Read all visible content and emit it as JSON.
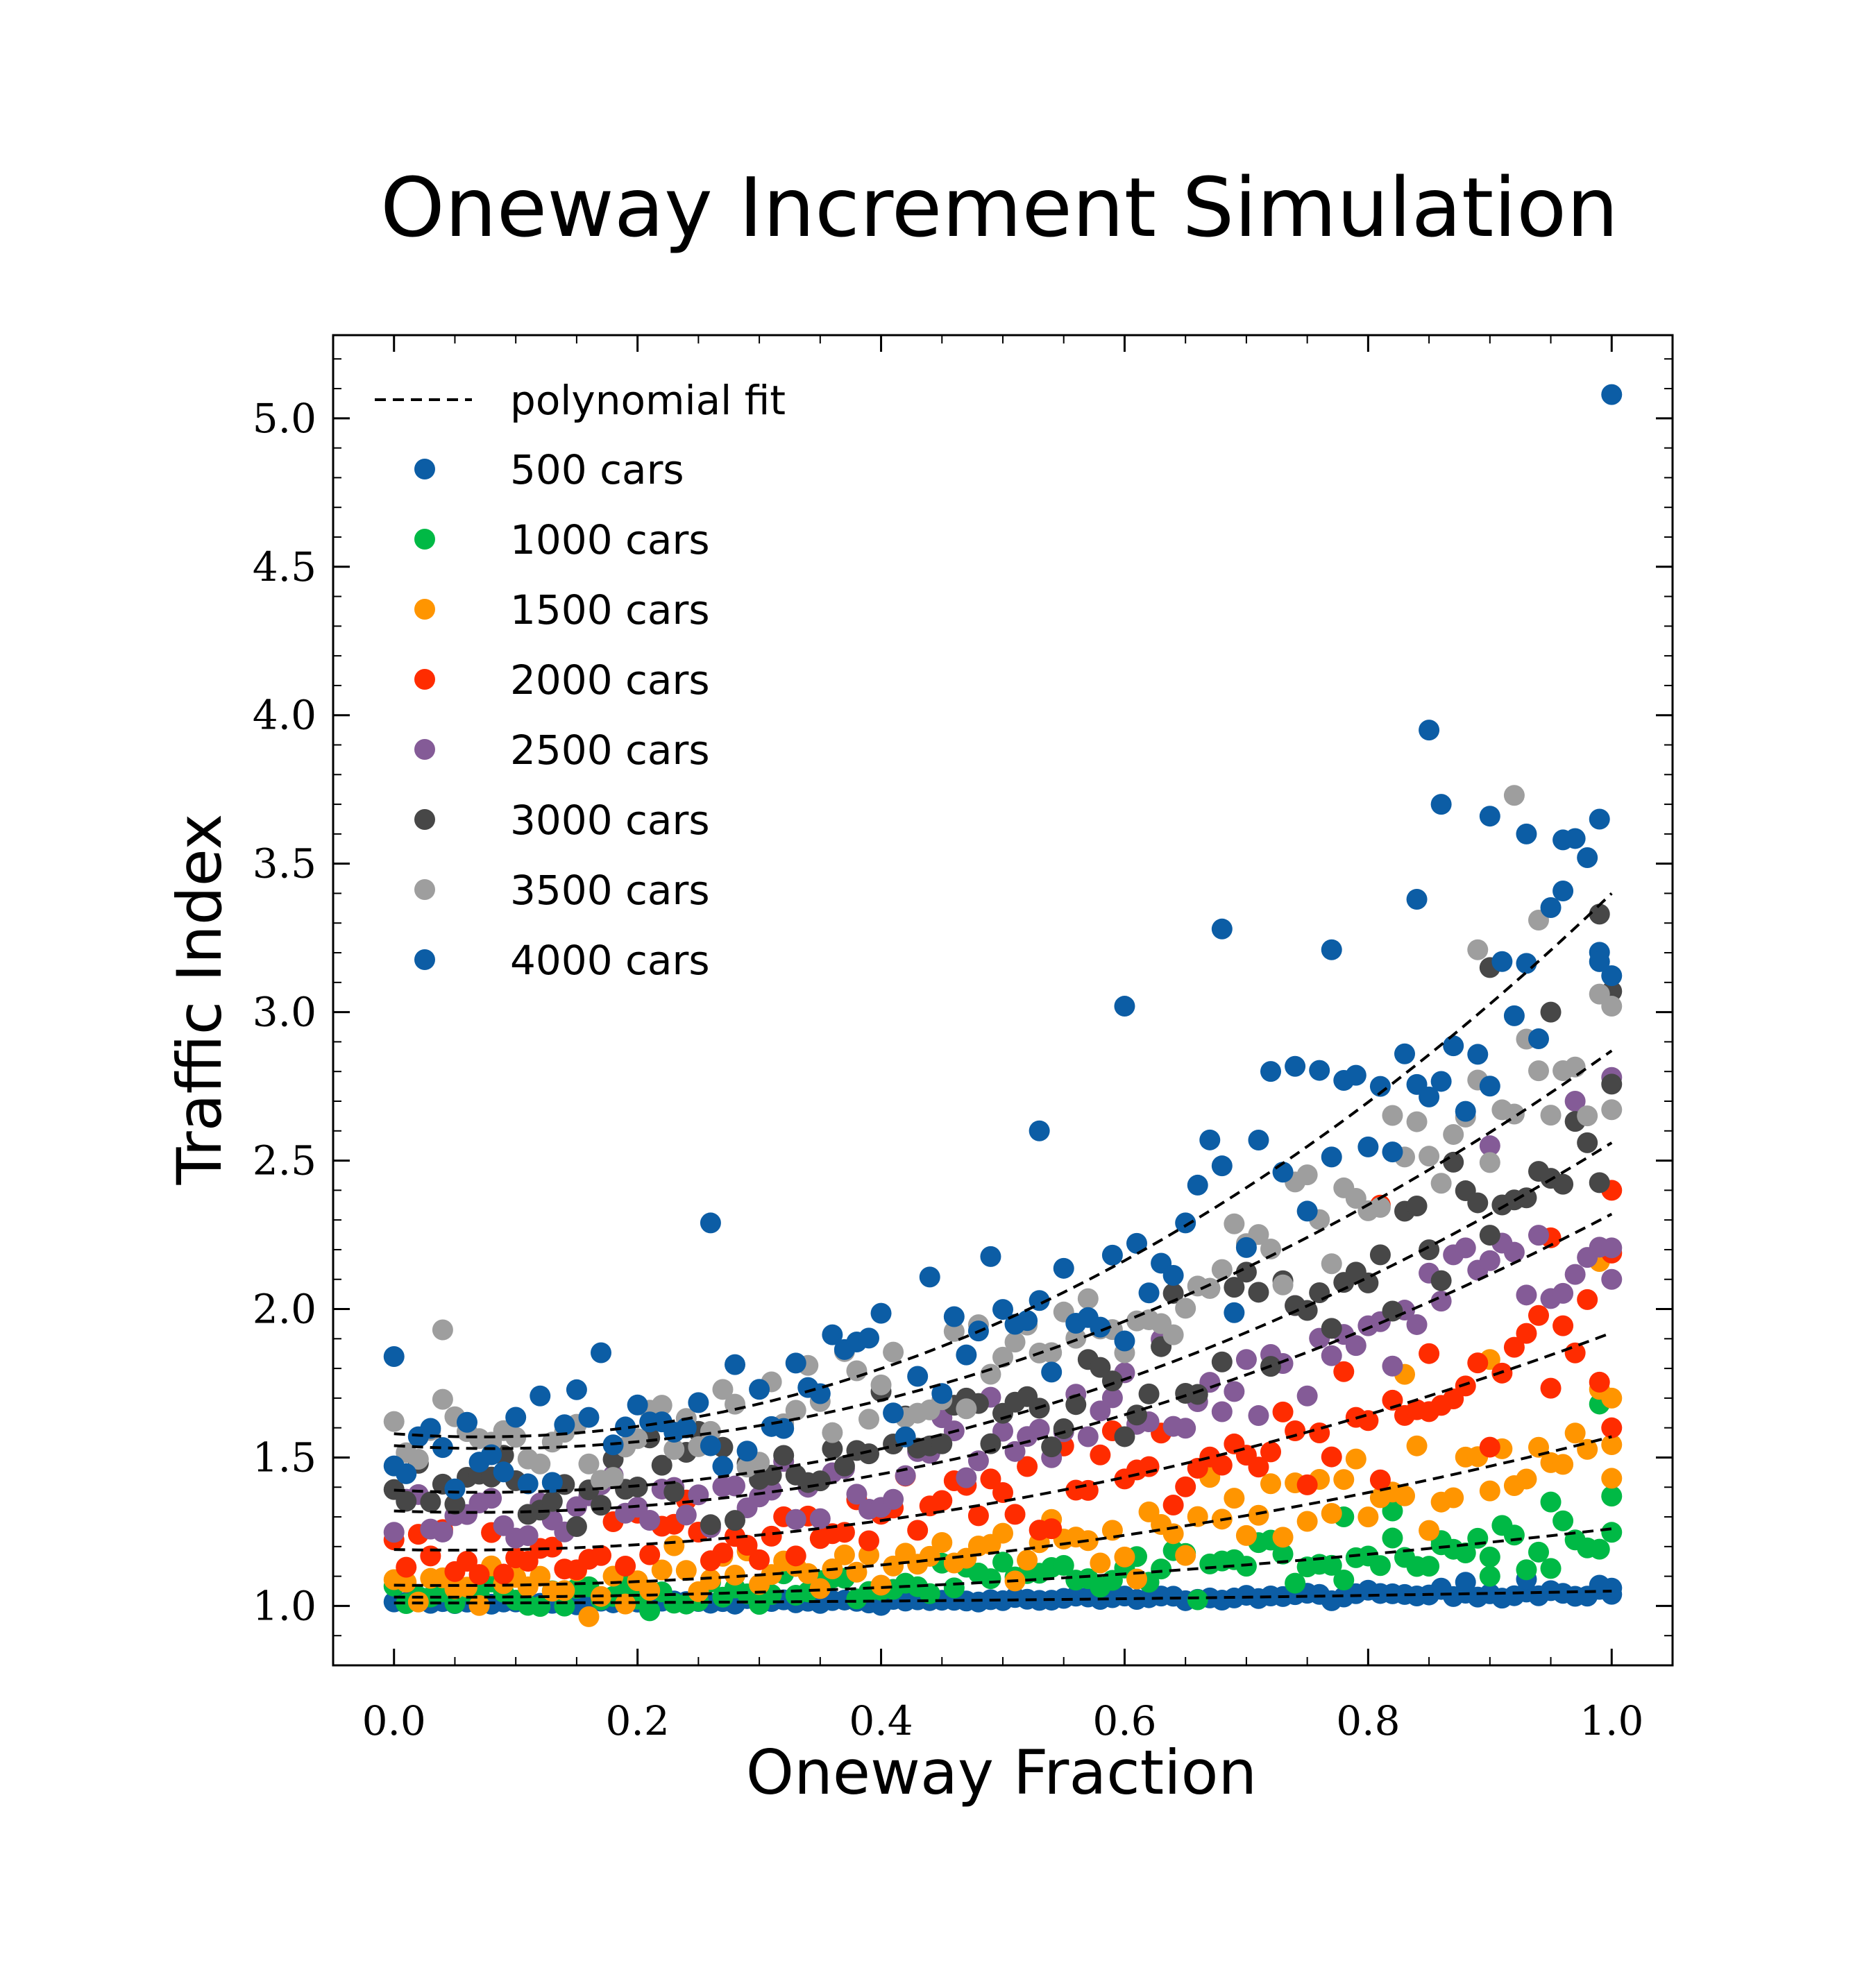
{
  "chart_data": {
    "type": "scatter",
    "title": "Oneway Increment Simulation",
    "xlabel": "Oneway Fraction",
    "ylabel": "Traffic Index",
    "xlim": [
      -0.05,
      1.05
    ],
    "ylim": [
      0.8,
      5.28
    ],
    "xticks": [
      0.0,
      0.2,
      0.4,
      0.6,
      0.8,
      1.0
    ],
    "xtick_labels": [
      "0.0",
      "0.2",
      "0.4",
      "0.6",
      "0.8",
      "1.0"
    ],
    "yticks": [
      1.0,
      1.5,
      2.0,
      2.5,
      3.0,
      3.5,
      4.0,
      4.5,
      5.0
    ],
    "ytick_labels": [
      "1.0",
      "1.5",
      "2.0",
      "2.5",
      "3.0",
      "3.5",
      "4.0",
      "4.5",
      "5.0"
    ],
    "grid": false,
    "legend_position": "top-left",
    "fit_label": "polynomial fit",
    "series": [
      {
        "name": "500 cars",
        "color": "#0C5DA5",
        "fit": [
          1.01,
          0.0,
          0.04
        ],
        "noise": 0.005,
        "outliers": [
          [
            0.86,
            1.06
          ],
          [
            0.88,
            1.08
          ],
          [
            0.93,
            1.09
          ],
          [
            0.99,
            1.07
          ],
          [
            1.0,
            1.06
          ]
        ]
      },
      {
        "name": "1000 cars",
        "color": "#00B945",
        "fit": [
          1.03,
          -0.02,
          0.25
        ],
        "noise": 0.03,
        "outliers": [
          [
            0.78,
            1.3
          ],
          [
            0.82,
            1.32
          ],
          [
            0.86,
            1.22
          ],
          [
            0.9,
            1.1
          ],
          [
            0.95,
            1.35
          ],
          [
            0.99,
            1.68
          ],
          [
            1.0,
            1.37
          ]
        ]
      },
      {
        "name": "1500 cars",
        "color": "#FF9500",
        "fit": [
          1.07,
          -0.05,
          0.55
        ],
        "noise": 0.05,
        "outliers": [
          [
            0.83,
            1.78
          ],
          [
            0.9,
            1.83
          ],
          [
            0.99,
            2.16
          ],
          [
            1.0,
            1.7
          ],
          [
            1.0,
            1.43
          ]
        ]
      },
      {
        "name": "2000 cars",
        "color": "#FF2C00",
        "fit": [
          1.19,
          -0.08,
          0.81
        ],
        "noise": 0.06,
        "outliers": [
          [
            0.81,
            2.35
          ],
          [
            0.85,
            1.85
          ],
          [
            0.95,
            2.24
          ],
          [
            1.0,
            2.4
          ],
          [
            1.0,
            1.6
          ]
        ]
      },
      {
        "name": "2500 cars",
        "color": "#845B97",
        "fit": [
          1.32,
          -0.15,
          1.15
        ],
        "noise": 0.07,
        "outliers": [
          [
            0.9,
            2.55
          ],
          [
            0.97,
            2.7
          ],
          [
            1.0,
            2.78
          ],
          [
            1.0,
            2.1
          ]
        ]
      },
      {
        "name": "3000 cars",
        "color": "#474747",
        "fit": [
          1.39,
          -0.2,
          1.37
        ],
        "noise": 0.08,
        "outliers": [
          [
            0.9,
            3.15
          ],
          [
            0.95,
            3.0
          ],
          [
            0.99,
            3.33
          ],
          [
            1.0,
            3.07
          ]
        ]
      },
      {
        "name": "3500 cars",
        "color": "#9E9E9E",
        "fit": [
          1.54,
          -0.25,
          1.58
        ],
        "noise": 0.09,
        "outliers": [
          [
            0.04,
            1.93
          ],
          [
            0.92,
            3.73
          ],
          [
            0.89,
            3.21
          ],
          [
            0.94,
            3.31
          ],
          [
            1.0,
            3.02
          ]
        ]
      },
      {
        "name": "4000 cars",
        "color": "#0C5DA5",
        "fit": [
          1.58,
          -0.3,
          2.12
        ],
        "noise": 0.12,
        "outliers": [
          [
            0.0,
            1.84
          ],
          [
            0.26,
            2.29
          ],
          [
            0.53,
            2.6
          ],
          [
            0.6,
            3.02
          ],
          [
            0.68,
            3.28
          ],
          [
            0.77,
            3.21
          ],
          [
            0.85,
            3.95
          ],
          [
            0.86,
            3.7
          ],
          [
            0.9,
            3.66
          ],
          [
            0.93,
            3.6
          ],
          [
            0.96,
            3.58
          ],
          [
            0.99,
            3.65
          ],
          [
            1.0,
            5.08
          ],
          [
            0.84,
            3.38
          ],
          [
            0.99,
            3.17
          ]
        ]
      }
    ]
  }
}
